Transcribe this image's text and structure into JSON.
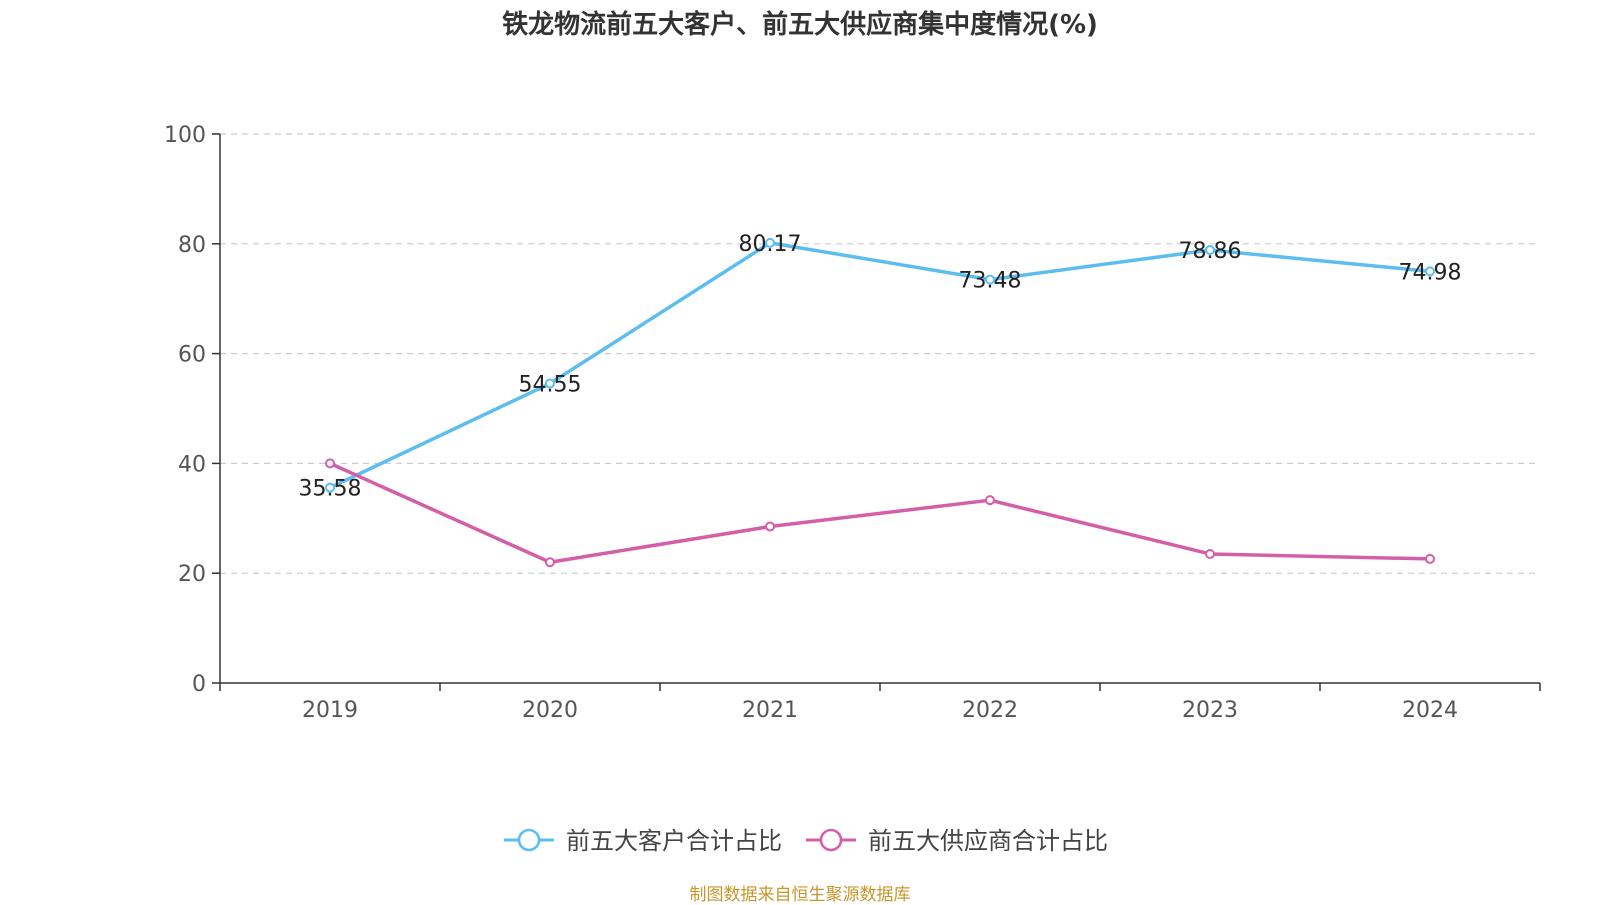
{
  "chart_data": {
    "type": "line",
    "title": "铁龙物流前五大客户、前五大供应商集中度情况(%)",
    "categories": [
      "2019",
      "2020",
      "2021",
      "2022",
      "2023",
      "2024"
    ],
    "ylim": [
      0,
      100
    ],
    "yticks": [
      0,
      20,
      40,
      60,
      80,
      100
    ],
    "grid": true,
    "legend_position": "bottom",
    "series": [
      {
        "name": "前五大客户合计占比",
        "color": "#5bbdf0",
        "values": [
          35.58,
          54.55,
          80.17,
          73.48,
          78.86,
          74.98
        ],
        "labels": [
          "35.58",
          "54.55",
          "80.17",
          "73.48",
          "78.86",
          "74.98"
        ]
      },
      {
        "name": "前五大供应商合计占比",
        "color": "#d45fa8",
        "values": [
          40.0,
          22.0,
          28.5,
          33.3,
          23.5,
          22.6
        ]
      }
    ]
  },
  "source_text": "制图数据来自恒生聚源数据库"
}
